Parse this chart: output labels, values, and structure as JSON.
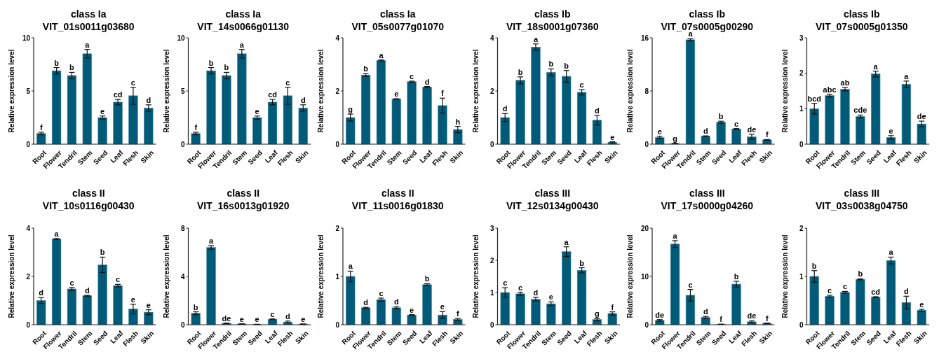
{
  "chart_data": [
    {
      "type": "bar",
      "title": "class Ia",
      "subtitle": "VIT_01s0011g03680",
      "ylabel": "Relative expression level",
      "categories": [
        "Root",
        "Flower",
        "Tendril",
        "Stem",
        "Seed",
        "Leaf",
        "Flesh",
        "Skin"
      ],
      "values": [
        1.0,
        6.9,
        6.45,
        8.5,
        2.5,
        3.95,
        4.55,
        3.4
      ],
      "errors": [
        0.12,
        0.3,
        0.3,
        0.4,
        0.15,
        0.25,
        0.8,
        0.3
      ],
      "value_labels": [
        "f",
        "b",
        "b",
        "a",
        "e",
        "cd",
        "c",
        "d"
      ],
      "color": "#005a78",
      "ylim": [
        0,
        10
      ],
      "yticks": [
        0,
        5,
        10
      ],
      "grid": false
    },
    {
      "type": "bar",
      "title": "class Ia",
      "subtitle": "VIT_14s0066g01130",
      "ylabel": "Relative expression level",
      "categories": [
        "Root",
        "Flower",
        "Tendril",
        "Stem",
        "Seed",
        "Leaf",
        "Flesh",
        "Skin"
      ],
      "values": [
        1.0,
        6.9,
        6.45,
        8.5,
        2.5,
        3.95,
        4.55,
        3.4
      ],
      "errors": [
        0.12,
        0.3,
        0.3,
        0.4,
        0.15,
        0.25,
        0.8,
        0.3
      ],
      "value_labels": [
        "f",
        "b",
        "b",
        "a",
        "e",
        "cd",
        "c",
        "d"
      ],
      "color": "#005a78",
      "ylim": [
        0,
        10
      ],
      "yticks": [
        0,
        5,
        10
      ],
      "grid": false
    },
    {
      "type": "bar",
      "title": "class Ia",
      "subtitle": "VIT_05s0077g01070",
      "ylabel": "Relative expression level",
      "categories": [
        "Root",
        "Flower",
        "Tendril",
        "Stem",
        "Seed",
        "Leaf",
        "Flesh",
        "Skin"
      ],
      "values": [
        1.0,
        2.6,
        3.15,
        1.7,
        2.35,
        2.15,
        1.45,
        0.55
      ],
      "errors": [
        0.13,
        0.05,
        0.02,
        0.01,
        0.02,
        0.02,
        0.28,
        0.12
      ],
      "value_labels": [
        "g",
        "b",
        "a",
        "e",
        "c",
        "d",
        "f",
        "h"
      ],
      "color": "#005a78",
      "ylim": [
        0,
        4
      ],
      "yticks": [
        0,
        2,
        4
      ],
      "grid": false
    },
    {
      "type": "bar",
      "title": "class Ib",
      "subtitle": "VIT_18s0001g07360",
      "ylabel": "Relative expression level",
      "categories": [
        "Root",
        "Flower",
        "Tendril",
        "Stem",
        "Seed",
        "Leaf",
        "Flesh",
        "Skin"
      ],
      "values": [
        1.0,
        2.4,
        3.65,
        2.7,
        2.55,
        1.95,
        0.9,
        0.07
      ],
      "errors": [
        0.15,
        0.13,
        0.12,
        0.13,
        0.22,
        0.1,
        0.18,
        0.02
      ],
      "value_labels": [
        "d",
        "b",
        "a",
        "b",
        "b",
        "c",
        "d",
        "e"
      ],
      "color": "#005a78",
      "ylim": [
        0,
        4
      ],
      "yticks": [
        0,
        2,
        4
      ],
      "grid": false
    },
    {
      "type": "bar",
      "title": "class Ib",
      "subtitle": "VIT_07s0005g00290",
      "ylabel": "Relative expression level",
      "categories": [
        "Root",
        "Flower",
        "Tendril",
        "Stem",
        "Seed",
        "Leaf",
        "Flesh",
        "Skin"
      ],
      "values": [
        1.0,
        0.1,
        15.7,
        1.2,
        3.3,
        2.3,
        1.1,
        0.65
      ],
      "errors": [
        0.2,
        0.02,
        0.15,
        0.05,
        0.15,
        0.05,
        0.4,
        0.05
      ],
      "value_labels": [
        "e",
        "g",
        "a",
        "d",
        "b",
        "c",
        "de",
        "f"
      ],
      "color": "#005a78",
      "ylim": [
        0,
        16
      ],
      "yticks": [
        0,
        8,
        16
      ],
      "grid": false
    },
    {
      "type": "bar",
      "title": "class Ib",
      "subtitle": "VIT_07s0005g01350",
      "ylabel": "Relative expression level",
      "categories": [
        "Root",
        "Flower",
        "Tendril",
        "Stem",
        "Seed",
        "Leaf",
        "Flesh",
        "Skin"
      ],
      "values": [
        1.0,
        1.37,
        1.55,
        0.78,
        1.98,
        0.19,
        1.69,
        0.57
      ],
      "errors": [
        0.15,
        0.04,
        0.05,
        0.04,
        0.08,
        0.05,
        0.09,
        0.08
      ],
      "value_labels": [
        "bcd",
        "abc",
        "ab",
        "cde",
        "a",
        "e",
        "a",
        "de"
      ],
      "color": "#005a78",
      "ylim": [
        0,
        3
      ],
      "yticks": [
        0,
        1,
        2,
        3
      ],
      "grid": false
    },
    {
      "type": "bar",
      "title": "class II",
      "subtitle": "VIT_10s0116g00430",
      "ylabel": "Relative expression level",
      "categories": [
        "Root",
        "Flower",
        "Tendril",
        "Stem",
        "Seed",
        "Leaf",
        "Flesh",
        "Skin"
      ],
      "values": [
        1.0,
        3.55,
        1.48,
        1.2,
        2.48,
        1.62,
        0.65,
        0.52
      ],
      "errors": [
        0.12,
        0.02,
        0.06,
        0.02,
        0.32,
        0.05,
        0.2,
        0.1
      ],
      "value_labels": [
        "d",
        "a",
        "c",
        "d",
        "b",
        "c",
        "e",
        "e"
      ],
      "color": "#005a78",
      "ylim": [
        0,
        4
      ],
      "yticks": [
        0,
        2,
        4
      ],
      "grid": false
    },
    {
      "type": "bar",
      "title": "class II",
      "subtitle": "VIT_16s0013g01920",
      "ylabel": "Relative expression level",
      "categories": [
        "Root",
        "Flower",
        "Tendril",
        "Stem",
        "Seed",
        "Leaf",
        "Flesh",
        "Skin"
      ],
      "values": [
        0.95,
        6.4,
        0.12,
        0.06,
        0.03,
        0.45,
        0.22,
        0.05
      ],
      "errors": [
        0.12,
        0.15,
        0.02,
        0.02,
        0.01,
        0.03,
        0.08,
        0.02
      ],
      "value_labels": [
        "b",
        "a",
        "de",
        "e",
        "e",
        "c",
        "d",
        "e"
      ],
      "color": "#005a78",
      "ylim": [
        0,
        8
      ],
      "yticks": [
        0,
        4,
        8
      ],
      "grid": false
    },
    {
      "type": "bar",
      "title": "class II",
      "subtitle": "VIT_11s0016g01830",
      "ylabel": "Relative expression level",
      "categories": [
        "Root",
        "Flower",
        "Tendril",
        "Stem",
        "Seed",
        "Leaf",
        "Flesh",
        "Skin"
      ],
      "values": [
        1.0,
        0.35,
        0.52,
        0.35,
        0.2,
        0.83,
        0.2,
        0.11
      ],
      "errors": [
        0.11,
        0.01,
        0.03,
        0.02,
        0.01,
        0.02,
        0.07,
        0.02
      ],
      "value_labels": [
        "a",
        "d",
        "c",
        "d",
        "e",
        "b",
        "e",
        "f"
      ],
      "color": "#005a78",
      "ylim": [
        0,
        2
      ],
      "yticks": [
        0,
        1,
        2
      ],
      "grid": false
    },
    {
      "type": "bar",
      "title": "class III",
      "subtitle": "VIT_12s0134g00430",
      "ylabel": "Relative expression level",
      "categories": [
        "Root",
        "Flower",
        "Tendril",
        "Stem",
        "Seed",
        "Leaf",
        "Flesh",
        "Skin"
      ],
      "values": [
        1.0,
        0.96,
        0.79,
        0.65,
        2.27,
        1.69,
        0.16,
        0.35
      ],
      "errors": [
        0.15,
        0.05,
        0.06,
        0.06,
        0.15,
        0.08,
        0.03,
        0.05
      ],
      "value_labels": [
        "c",
        "c",
        "d",
        "e",
        "a",
        "b",
        "g",
        "f"
      ],
      "color": "#005a78",
      "ylim": [
        0,
        3
      ],
      "yticks": [
        0,
        1,
        2,
        3
      ],
      "grid": false
    },
    {
      "type": "bar",
      "title": "class III",
      "subtitle": "VIT_17s0000g04260",
      "ylabel": "Relative expression level",
      "categories": [
        "Root",
        "Flower",
        "Tendril",
        "Stem",
        "Seed",
        "Leaf",
        "Flesh",
        "Skin"
      ],
      "values": [
        0.9,
        16.7,
        6.1,
        1.5,
        0.1,
        8.4,
        0.6,
        0.3
      ],
      "errors": [
        0.15,
        0.7,
        1.2,
        0.2,
        0.02,
        0.6,
        0.2,
        0.05
      ],
      "value_labels": [
        "de",
        "a",
        "c",
        "d",
        "f",
        "b",
        "de",
        "f"
      ],
      "color": "#005a78",
      "ylim": [
        0,
        20
      ],
      "yticks": [
        0,
        10,
        20
      ],
      "grid": false
    },
    {
      "type": "bar",
      "title": "class III",
      "subtitle": "VIT_03s0038g04750",
      "ylabel": "Relative expression level",
      "categories": [
        "Root",
        "Flower",
        "Tendril",
        "Stem",
        "Seed",
        "Leaf",
        "Flesh",
        "Skin"
      ],
      "values": [
        1.0,
        0.59,
        0.67,
        0.94,
        0.57,
        1.33,
        0.46,
        0.3
      ],
      "errors": [
        0.12,
        0.02,
        0.02,
        0.01,
        0.01,
        0.07,
        0.13,
        0.02
      ],
      "value_labels": [
        "b",
        "c",
        "c",
        "b",
        "cd",
        "a",
        "d",
        "e"
      ],
      "color": "#005a78",
      "ylim": [
        0,
        2
      ],
      "yticks": [
        0,
        1,
        2
      ],
      "grid": false
    }
  ]
}
